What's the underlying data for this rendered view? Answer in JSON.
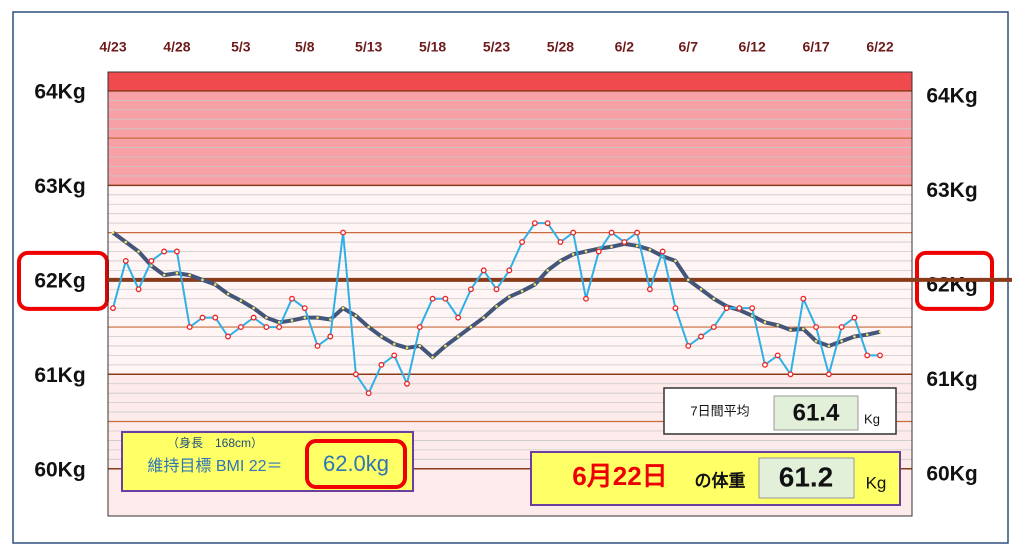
{
  "chart_data": {
    "type": "line",
    "categories": [
      "4/23",
      null,
      null,
      null,
      null,
      "4/28",
      null,
      null,
      null,
      null,
      "5/3",
      null,
      null,
      null,
      null,
      "5/8",
      null,
      null,
      null,
      null,
      "5/13",
      null,
      null,
      null,
      null,
      "5/18",
      null,
      null,
      null,
      null,
      "5/23",
      null,
      null,
      null,
      null,
      "5/28",
      null,
      null,
      null,
      null,
      "6/2",
      null,
      null,
      null,
      null,
      "6/7",
      null,
      null,
      null,
      null,
      "6/12",
      null,
      null,
      null,
      null,
      "6/17",
      null,
      null,
      null,
      null,
      "6/22"
    ],
    "series": [
      {
        "color": "#2fb0e6",
        "values": [
          61.7,
          62.2,
          61.9,
          62.2,
          62.3,
          62.3,
          61.5,
          61.6,
          61.6,
          61.4,
          61.5,
          61.6,
          61.5,
          61.5,
          61.8,
          61.7,
          61.3,
          61.4,
          62.5,
          61.0,
          60.8,
          61.1,
          61.2,
          60.9,
          61.5,
          61.8,
          61.8,
          61.6,
          61.9,
          62.1,
          61.9,
          62.1,
          62.4,
          62.6,
          62.6,
          62.4,
          62.5,
          61.8,
          62.3,
          62.5,
          62.4,
          62.5,
          61.9,
          62.3,
          61.7,
          61.3,
          61.4,
          61.5,
          61.7,
          61.7,
          61.7,
          61.1,
          61.2,
          61.0,
          61.8,
          61.5,
          61.0,
          61.5,
          61.6,
          61.2,
          61.2
        ]
      },
      {
        "color": "#44557a",
        "values": [
          62.5,
          62.4,
          62.3,
          62.15,
          62.05,
          62.07,
          62.05,
          62.0,
          61.95,
          61.85,
          61.78,
          61.7,
          61.6,
          61.55,
          61.57,
          61.6,
          61.6,
          61.58,
          61.7,
          61.62,
          61.5,
          61.4,
          61.32,
          61.28,
          61.3,
          61.18,
          61.3,
          61.4,
          61.5,
          61.6,
          61.72,
          61.82,
          61.88,
          61.95,
          62.1,
          62.2,
          62.27,
          62.3,
          62.33,
          62.35,
          62.38,
          62.36,
          62.32,
          62.25,
          62.2,
          62.0,
          61.9,
          61.8,
          61.72,
          61.68,
          61.62,
          61.55,
          61.52,
          61.47,
          61.48,
          61.35,
          61.3,
          61.35,
          61.4,
          61.42,
          61.45
        ]
      }
    ],
    "ylim": [
      59.5,
      64.2
    ],
    "yticks": [
      {
        "value": 60,
        "label": "60Kg"
      },
      {
        "value": 61,
        "label": "61Kg"
      },
      {
        "value": 62,
        "label": "62Kg"
      },
      {
        "value": 63,
        "label": "63Kg"
      },
      {
        "value": 64,
        "label": "64Kg"
      }
    ],
    "target": {
      "value": 62,
      "label": "62.0kg"
    },
    "bmi_box": {
      "height": "（身長　168cm）",
      "text": "維持目標 BMI 22＝"
    },
    "avg_box": {
      "label": "7日間平均",
      "value": "61.4",
      "unit": "Kg"
    },
    "weight_box": {
      "date": "6月22日",
      "label": "の体重",
      "value": "61.2",
      "unit": "Kg"
    }
  }
}
